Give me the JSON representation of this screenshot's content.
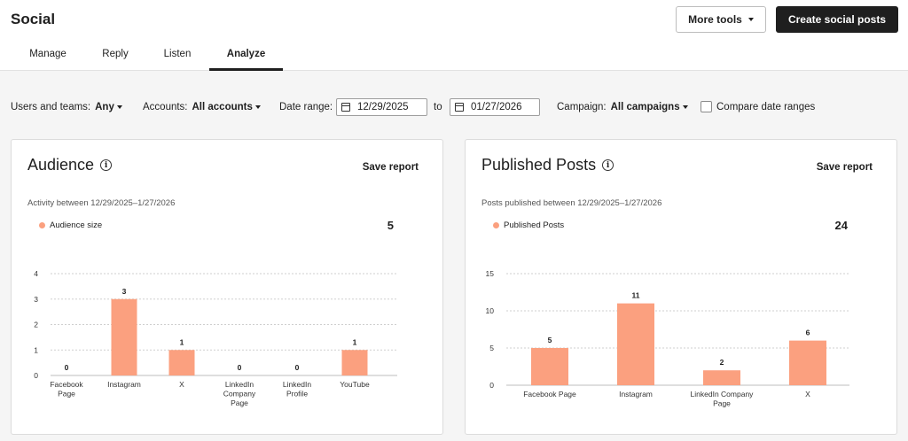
{
  "header": {
    "title": "Social",
    "more_tools": "More tools",
    "create_button": "Create social posts"
  },
  "tabs": [
    {
      "label": "Manage",
      "active": false
    },
    {
      "label": "Reply",
      "active": false
    },
    {
      "label": "Listen",
      "active": false
    },
    {
      "label": "Analyze",
      "active": true
    }
  ],
  "filters": {
    "users_label": "Users and teams:",
    "users_value": "Any",
    "accounts_label": "Accounts:",
    "accounts_value": "All accounts",
    "date_label": "Date range:",
    "date_from": "12/29/2025",
    "date_to_word": "to",
    "date_to": "01/27/2026",
    "campaign_label": "Campaign:",
    "campaign_value": "All campaigns",
    "compare_label": "Compare date ranges",
    "compare_checked": false
  },
  "accent_color": "#fba07f",
  "cards": {
    "audience": {
      "title": "Audience",
      "save_label": "Save report",
      "subtitle": "Activity between 12/29/2025–1/27/2026",
      "legend": "Audience size",
      "total": "5"
    },
    "published": {
      "title": "Published Posts",
      "save_label": "Save report",
      "subtitle": "Posts published between 12/29/2025–1/27/2026",
      "legend": "Published Posts",
      "total": "24"
    }
  },
  "chart_data": [
    {
      "type": "bar",
      "categories": [
        [
          "Facebook",
          "Page"
        ],
        [
          "Instagram"
        ],
        [
          "X"
        ],
        [
          "LinkedIn",
          "Company",
          "Page"
        ],
        [
          "LinkedIn",
          "Profile"
        ],
        [
          "YouTube"
        ]
      ],
      "series": [
        {
          "name": "Audience size",
          "values": [
            0,
            3,
            1,
            0,
            0,
            1
          ]
        }
      ],
      "yticks": [
        0,
        1,
        2,
        3,
        4
      ],
      "ylim": [
        0,
        4
      ],
      "grid": true,
      "legend": "top-left"
    },
    {
      "type": "bar",
      "categories": [
        [
          "Facebook Page"
        ],
        [
          "Instagram"
        ],
        [
          "LinkedIn Company",
          "Page"
        ],
        [
          "X"
        ]
      ],
      "series": [
        {
          "name": "Published Posts",
          "values": [
            5,
            11,
            2,
            6
          ]
        }
      ],
      "yticks": [
        0,
        5,
        10,
        15
      ],
      "ylim": [
        0,
        15
      ],
      "grid": true,
      "legend": "top-left"
    }
  ]
}
